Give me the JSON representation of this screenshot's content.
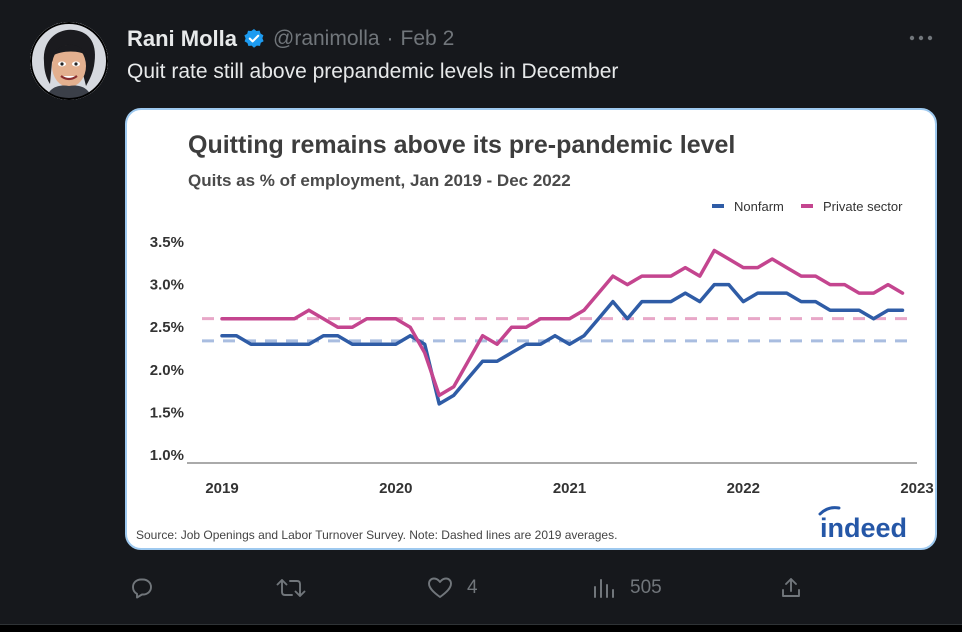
{
  "tweet": {
    "author_name": "Rani Molla",
    "handle": "@ranimolla",
    "separator": "·",
    "date": "Feb 2",
    "text": "Quit rate still above prepandemic levels in December"
  },
  "actions": {
    "reply_count": "",
    "retweet_count": "",
    "like_count": "4",
    "views_count": "505"
  },
  "icons": {
    "avatar": "avatar-illustration",
    "verified": "verified-badge-icon",
    "more": "more-options-icon",
    "reply": "reply-icon",
    "retweet": "retweet-icon",
    "like": "heart-icon",
    "views": "views-icon",
    "share": "share-icon",
    "logo": "indeed-logo"
  },
  "colors": {
    "nonfarm": "#2f5ca6",
    "private_sector": "#c4458f",
    "nonfarm_avg": "#a9bde0",
    "private_avg": "#e8a7c8",
    "verified": "#1d9bf0",
    "indeed": "#2557a7"
  },
  "chart_data": {
    "type": "line",
    "title": "Quitting remains above its pre-pandemic level",
    "subtitle": "Quits as % of employment, Jan 2019 - Dec 2022",
    "source": "Source: Job Openings and Labor Turnover Survey. Note: Dashed lines are 2019 averages.",
    "logo_text": "indeed",
    "legend_position": "top-right",
    "grid": false,
    "ylim": [
      1.0,
      3.5
    ],
    "yticks": [
      "3.5%",
      "3.0%",
      "2.5%",
      "2.0%",
      "1.5%",
      "1.0%"
    ],
    "ytick_values": [
      3.5,
      3.0,
      2.5,
      2.0,
      1.5,
      1.0
    ],
    "xticks": [
      "2019",
      "2020",
      "2021",
      "2022",
      "2023"
    ],
    "xtick_values": [
      2019,
      2020,
      2021,
      2022,
      2023
    ],
    "x_start": 2019,
    "x_step_months": 1,
    "series": [
      {
        "name": "Nonfarm",
        "values": [
          2.4,
          2.4,
          2.3,
          2.3,
          2.3,
          2.3,
          2.3,
          2.4,
          2.4,
          2.3,
          2.3,
          2.3,
          2.3,
          2.4,
          2.3,
          1.6,
          1.7,
          1.9,
          2.1,
          2.1,
          2.2,
          2.3,
          2.3,
          2.4,
          2.3,
          2.4,
          2.6,
          2.8,
          2.6,
          2.8,
          2.8,
          2.8,
          2.9,
          2.8,
          3.0,
          3.0,
          2.8,
          2.9,
          2.9,
          2.9,
          2.8,
          2.8,
          2.7,
          2.7,
          2.7,
          2.6,
          2.7,
          2.7
        ]
      },
      {
        "name": "Private sector",
        "values": [
          2.6,
          2.6,
          2.6,
          2.6,
          2.6,
          2.6,
          2.7,
          2.6,
          2.5,
          2.5,
          2.6,
          2.6,
          2.6,
          2.5,
          2.2,
          1.7,
          1.8,
          2.1,
          2.4,
          2.3,
          2.5,
          2.5,
          2.6,
          2.6,
          2.6,
          2.7,
          2.9,
          3.1,
          3.0,
          3.1,
          3.1,
          3.1,
          3.2,
          3.1,
          3.4,
          3.3,
          3.2,
          3.2,
          3.3,
          3.2,
          3.1,
          3.1,
          3.0,
          3.0,
          2.9,
          2.9,
          3.0,
          2.9
        ]
      }
    ],
    "reference_lines": [
      {
        "series": "Nonfarm",
        "value": 2.34,
        "style": "dashed"
      },
      {
        "series": "Private sector",
        "value": 2.6,
        "style": "dashed"
      }
    ]
  }
}
